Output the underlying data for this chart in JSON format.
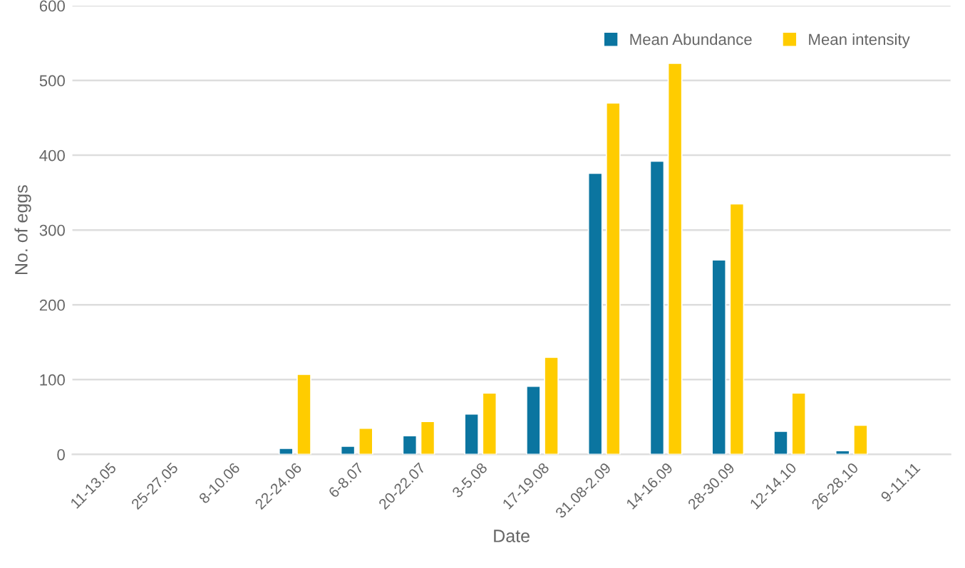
{
  "chart_data": {
    "type": "bar",
    "xlabel": "Date",
    "ylabel": "No. of eggs",
    "categories": [
      "11-13.05",
      "25-27.05",
      "8-10.06",
      "22-24.06",
      "6-8.07",
      "20-22.07",
      "3-5.08",
      "17-19.08",
      "31.08-2.09",
      "14-16.09",
      "28-30.09",
      "12-14.10",
      "26-28.10",
      "9-11.11"
    ],
    "series": [
      {
        "name": "Mean Abundance",
        "color": "#0b75a0",
        "values": [
          null,
          null,
          null,
          8,
          11,
          25,
          54,
          91,
          376,
          392,
          260,
          31,
          5,
          null
        ]
      },
      {
        "name": "Mean intensity",
        "color": "#ffcc00",
        "values": [
          null,
          null,
          null,
          107,
          35,
          44,
          82,
          130,
          470,
          523,
          335,
          82,
          39,
          null
        ]
      }
    ],
    "ylim": [
      0,
      600
    ],
    "yticks": [
      0,
      100,
      200,
      300,
      400,
      500,
      600
    ],
    "grid": "y",
    "legend": "top right"
  }
}
